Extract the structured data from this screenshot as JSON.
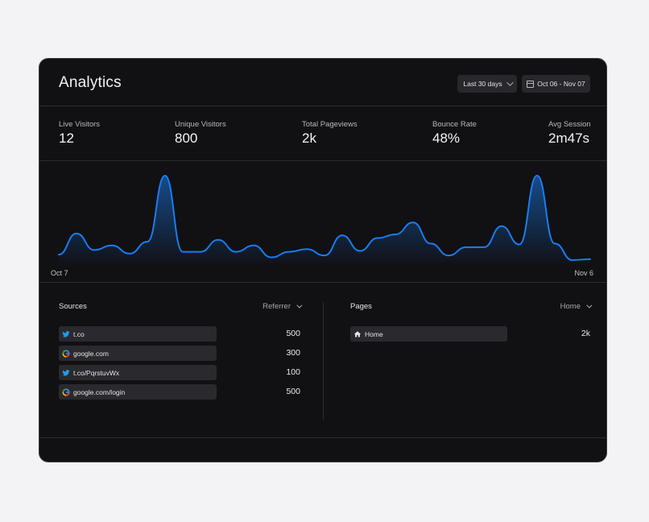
{
  "header": {
    "title": "Analytics",
    "range_label": "Last 30 days",
    "date_label": "Oct 06 - Nov 07"
  },
  "stats": [
    {
      "label": "Live Visitors",
      "value": "12"
    },
    {
      "label": "Unique Visitors",
      "value": "800"
    },
    {
      "label": "Total Pageviews",
      "value": "2k"
    },
    {
      "label": "Bounce Rate",
      "value": "48%"
    },
    {
      "label": "Avg Session",
      "value": "2m47s"
    }
  ],
  "chart_data": {
    "type": "area",
    "x_start_label": "Oct 7",
    "x_end_label": "Nov 6",
    "values": [
      14,
      37,
      19,
      24,
      15,
      28,
      100,
      17,
      17,
      30,
      17,
      24,
      11,
      17,
      20,
      13,
      35,
      18,
      32,
      36,
      49,
      26,
      13,
      22,
      22,
      45,
      25,
      100,
      26,
      8,
      9
    ],
    "line_color": "#1a7df0",
    "grid": false
  },
  "sources": {
    "title": "Sources",
    "filter": "Referrer",
    "items": [
      {
        "label": "t.co",
        "value": "500",
        "icon": "twitter-icon",
        "share": 0.62
      },
      {
        "label": "google.com",
        "value": "300",
        "icon": "google-icon",
        "share": 0.62
      },
      {
        "label": "t.co/PqrstuvWx",
        "value": "100",
        "icon": "twitter-icon",
        "share": 0.62
      },
      {
        "label": "google.com/login",
        "value": "500",
        "icon": "google-icon",
        "share": 0.62
      }
    ]
  },
  "pages": {
    "title": "Pages",
    "filter": "Home",
    "items": [
      {
        "label": "Home",
        "value": "2k",
        "icon": "home-icon",
        "share": 0.66
      }
    ]
  }
}
